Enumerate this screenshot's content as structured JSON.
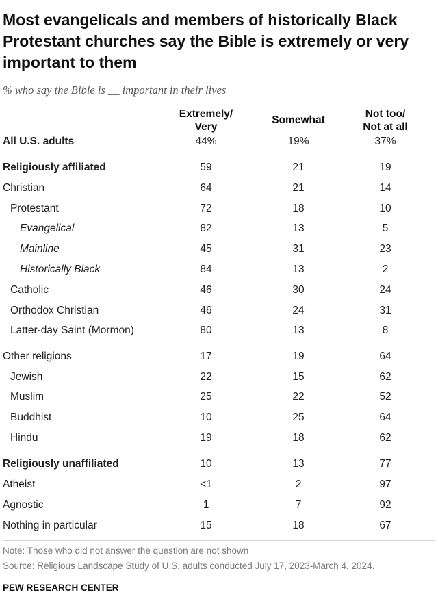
{
  "title": "Most evangelicals and members of historically Black Protestant churches say the Bible is extremely or very important to them",
  "subtitle": "% who say the Bible is __ important in their lives",
  "columns": {
    "col1": "Extremely/\nVery",
    "col2": "Somewhat",
    "col3": "Not too/\nNot at all"
  },
  "note": "Note: Those who did not answer the question are not shown",
  "source": "Source: Religious Landscape Study of U.S. adults conducted July 17, 2023-March 4, 2024.",
  "org": "PEW RESEARCH CENTER",
  "chart_data": {
    "type": "table",
    "columns": [
      "Extremely/Very",
      "Somewhat",
      "Not too/Not at all"
    ],
    "rows": [
      {
        "label": "All U.S. adults",
        "values": [
          "44%",
          "19%",
          "37%"
        ],
        "style": "bold",
        "indent": 0
      },
      {
        "label": "Religiously affiliated",
        "values": [
          "59",
          "21",
          "19"
        ],
        "style": "bold",
        "indent": 0
      },
      {
        "label": "Christian",
        "values": [
          "64",
          "21",
          "14"
        ],
        "style": "normal",
        "indent": 0
      },
      {
        "label": "Protestant",
        "values": [
          "72",
          "18",
          "10"
        ],
        "style": "normal",
        "indent": 1
      },
      {
        "label": "Evangelical",
        "values": [
          "82",
          "13",
          "5"
        ],
        "style": "italic",
        "indent": 2
      },
      {
        "label": "Mainline",
        "values": [
          "45",
          "31",
          "23"
        ],
        "style": "italic",
        "indent": 2
      },
      {
        "label": "Historically Black",
        "values": [
          "84",
          "13",
          "2"
        ],
        "style": "italic",
        "indent": 2
      },
      {
        "label": "Catholic",
        "values": [
          "46",
          "30",
          "24"
        ],
        "style": "normal",
        "indent": 1
      },
      {
        "label": "Orthodox Christian",
        "values": [
          "46",
          "24",
          "31"
        ],
        "style": "normal",
        "indent": 1
      },
      {
        "label": "Latter-day Saint (Mormon)",
        "values": [
          "80",
          "13",
          "8"
        ],
        "style": "normal",
        "indent": 1
      },
      {
        "label": "Other religions",
        "values": [
          "17",
          "19",
          "64"
        ],
        "style": "normal",
        "indent": 0
      },
      {
        "label": "Jewish",
        "values": [
          "22",
          "15",
          "62"
        ],
        "style": "normal",
        "indent": 1
      },
      {
        "label": "Muslim",
        "values": [
          "25",
          "22",
          "52"
        ],
        "style": "normal",
        "indent": 1
      },
      {
        "label": "Buddhist",
        "values": [
          "10",
          "25",
          "64"
        ],
        "style": "normal",
        "indent": 1
      },
      {
        "label": "Hindu",
        "values": [
          "19",
          "18",
          "62"
        ],
        "style": "normal",
        "indent": 1
      },
      {
        "label": "Religiously unaffiliated",
        "values": [
          "10",
          "13",
          "77"
        ],
        "style": "bold",
        "indent": 0
      },
      {
        "label": "Atheist",
        "values": [
          "<1",
          "2",
          "97"
        ],
        "style": "normal",
        "indent": 0
      },
      {
        "label": "Agnostic",
        "values": [
          "1",
          "7",
          "92"
        ],
        "style": "normal",
        "indent": 0
      },
      {
        "label": "Nothing in particular",
        "values": [
          "15",
          "18",
          "67"
        ],
        "style": "normal",
        "indent": 0
      }
    ]
  }
}
